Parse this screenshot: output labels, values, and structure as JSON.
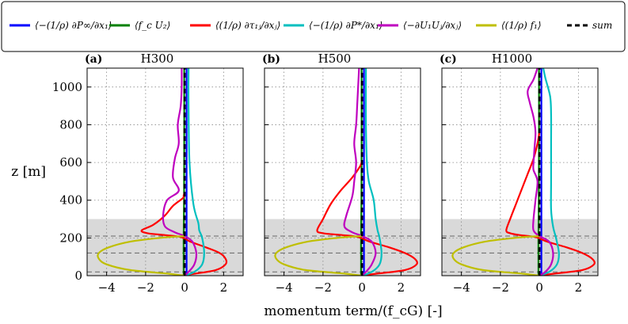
{
  "chart_data": {
    "type": "line",
    "xlabel": "momentum term/(f_cG) [-]",
    "ylabel": "z [m]",
    "xlim": [
      -5,
      3
    ],
    "ylim": [
      0,
      1100
    ],
    "xticks": [
      -4,
      -2,
      0,
      2
    ],
    "yticks": [
      0,
      200,
      400,
      600,
      800,
      1000
    ],
    "grid": true,
    "shaded_region": [
      0,
      300
    ],
    "dashed_levels": [
      20,
      120,
      210
    ],
    "legend": {
      "placement": "top",
      "entries": [
        {
          "label": "⟨−(1/ρ) ∂P∞/∂x₁⟩",
          "color": "#0000ff",
          "style": "solid"
        },
        {
          "label": "⟨f_c U₂⟩",
          "color": "#008000",
          "style": "solid"
        },
        {
          "label": "⟨(1/ρ) ∂τ₁ⱼ/∂xⱼ⟩",
          "color": "#ff0000",
          "style": "solid"
        },
        {
          "label": "⟨−(1/ρ) ∂P*/∂x₁⟩",
          "color": "#00bfbf",
          "style": "solid"
        },
        {
          "label": "⟨−∂U₁Uⱼ/∂xⱼ⟩",
          "color": "#bf00bf",
          "style": "solid"
        },
        {
          "label": "⟨(1/ρ) f₁⟩",
          "color": "#bfbf00",
          "style": "solid"
        },
        {
          "label": "sum",
          "color": "#000000",
          "style": "dashed"
        }
      ]
    },
    "panels": [
      {
        "letter": "(a)",
        "title": "H300",
        "series": [
          {
            "name": "pressure-gradient",
            "color": "#0000ff",
            "z": [
              0,
              20,
              100,
              200,
              400,
              700,
              1100
            ],
            "x": [
              0.1,
              0.1,
              0.1,
              0.1,
              0.1,
              0.1,
              0.1
            ]
          },
          {
            "name": "coriolis",
            "color": "#008000",
            "z": [
              0,
              20,
              100,
              200,
              400,
              700,
              1100
            ],
            "x": [
              -0.05,
              -0.05,
              -0.05,
              -0.05,
              -0.03,
              -0.02,
              -0.02
            ]
          },
          {
            "name": "stress-divergence",
            "color": "#ff0000",
            "z": [
              0,
              10,
              30,
              60,
              90,
              120,
              150,
              180,
              205,
              215,
              225,
              240,
              270,
              320,
              370,
              410,
              425,
              440
            ],
            "x": [
              -0.2,
              0.5,
              1.6,
              2.1,
              2.1,
              1.8,
              1.1,
              0.3,
              -0.2,
              -1.0,
              -1.9,
              -2.2,
              -1.6,
              -1.0,
              -0.6,
              -0.1,
              -0.05,
              0.0
            ]
          },
          {
            "name": "dispersive-pressure",
            "color": "#00bfbf",
            "z": [
              0,
              20,
              60,
              120,
              200,
              240,
              280,
              380,
              600,
              900,
              1100
            ],
            "x": [
              0.0,
              0.5,
              0.9,
              1.0,
              0.9,
              0.75,
              0.7,
              0.45,
              0.25,
              0.2,
              0.2
            ]
          },
          {
            "name": "advection",
            "color": "#bf00bf",
            "z": [
              0,
              20,
              60,
              120,
              180,
              210,
              230,
              260,
              320,
              400,
              450,
              520,
              620,
              700,
              800,
              900,
              1000,
              1100
            ],
            "x": [
              0.0,
              0.2,
              0.5,
              0.6,
              0.4,
              0.0,
              -0.5,
              -1.0,
              -1.1,
              -0.9,
              -0.3,
              -0.6,
              -0.5,
              -0.3,
              -0.35,
              -0.2,
              -0.15,
              -0.15
            ]
          },
          {
            "name": "drag-force",
            "color": "#bfbf00",
            "z": [
              0,
              10,
              30,
              60,
              90,
              120,
              150,
              180,
              200,
              210
            ],
            "x": [
              0.0,
              -0.8,
              -2.8,
              -4.0,
              -4.4,
              -4.4,
              -3.9,
              -2.8,
              -1.3,
              0.0
            ]
          },
          {
            "name": "sum",
            "color": "#000000",
            "dashed": true,
            "z": [
              0,
              20,
              100,
              200,
              400,
              700,
              1100
            ],
            "x": [
              0.0,
              0.0,
              0.0,
              0.0,
              0.0,
              0.0,
              0.0
            ]
          }
        ]
      },
      {
        "letter": "(b)",
        "title": "H500",
        "series": [
          {
            "name": "pressure-gradient",
            "color": "#0000ff",
            "z": [
              0,
              20,
              100,
              200,
              400,
              700,
              1100
            ],
            "x": [
              0.1,
              0.1,
              0.1,
              0.1,
              0.1,
              0.1,
              0.1
            ]
          },
          {
            "name": "coriolis",
            "color": "#008000",
            "z": [
              0,
              20,
              100,
              200,
              400,
              700,
              1100
            ],
            "x": [
              -0.05,
              -0.05,
              -0.05,
              -0.05,
              -0.03,
              -0.02,
              -0.02
            ]
          },
          {
            "name": "stress-divergence",
            "color": "#ff0000",
            "z": [
              0,
              10,
              30,
              60,
              90,
              120,
              150,
              180,
              205,
              215,
              225,
              240,
              300,
              380,
              450,
              520,
              580,
              610
            ],
            "x": [
              -0.2,
              0.7,
              2.2,
              2.8,
              2.7,
              2.2,
              1.4,
              0.4,
              -0.2,
              -1.0,
              -2.0,
              -2.3,
              -2.0,
              -1.6,
              -1.1,
              -0.5,
              -0.1,
              0.0
            ]
          },
          {
            "name": "dispersive-pressure",
            "color": "#00bfbf",
            "z": [
              0,
              20,
              60,
              120,
              200,
              240,
              300,
              400,
              500,
              600,
              800,
              1100
            ],
            "x": [
              0.0,
              0.5,
              0.9,
              1.0,
              0.9,
              0.8,
              0.7,
              0.6,
              0.35,
              0.25,
              0.2,
              0.2
            ]
          },
          {
            "name": "advection",
            "color": "#bf00bf",
            "z": [
              0,
              20,
              60,
              120,
              180,
              210,
              230,
              260,
              320,
              420,
              500,
              600,
              700,
              800,
              900,
              1000,
              1100
            ],
            "x": [
              0.0,
              0.2,
              0.5,
              0.7,
              0.5,
              0.0,
              -0.5,
              -0.9,
              -0.8,
              -0.5,
              -0.4,
              -0.3,
              -0.4,
              -0.3,
              -0.25,
              -0.2,
              -0.15
            ]
          },
          {
            "name": "drag-force",
            "color": "#bfbf00",
            "z": [
              0,
              10,
              30,
              60,
              90,
              120,
              150,
              180,
              200,
              210
            ],
            "x": [
              0.0,
              -0.8,
              -2.9,
              -4.0,
              -4.4,
              -4.4,
              -3.9,
              -2.8,
              -1.3,
              0.0
            ]
          },
          {
            "name": "sum",
            "color": "#000000",
            "dashed": true,
            "z": [
              0,
              20,
              100,
              200,
              400,
              700,
              1100
            ],
            "x": [
              0.0,
              0.0,
              0.0,
              0.0,
              0.0,
              0.0,
              0.0
            ]
          }
        ]
      },
      {
        "letter": "(c)",
        "title": "H1000",
        "series": [
          {
            "name": "pressure-gradient",
            "color": "#0000ff",
            "z": [
              0,
              20,
              100,
              200,
              400,
              700,
              1100
            ],
            "x": [
              0.1,
              0.1,
              0.1,
              0.1,
              0.1,
              0.1,
              0.1
            ]
          },
          {
            "name": "coriolis",
            "color": "#008000",
            "z": [
              0,
              20,
              100,
              200,
              400,
              700,
              1100
            ],
            "x": [
              -0.05,
              -0.05,
              -0.05,
              -0.05,
              -0.03,
              -0.02,
              -0.02
            ]
          },
          {
            "name": "stress-divergence",
            "color": "#ff0000",
            "z": [
              0,
              10,
              30,
              60,
              90,
              120,
              150,
              180,
              205,
              215,
              225,
              240,
              300,
              380,
              460,
              540,
              620,
              700,
              760
            ],
            "x": [
              -0.2,
              0.7,
              2.2,
              2.8,
              2.7,
              2.2,
              1.4,
              0.4,
              -0.2,
              -1.0,
              -1.5,
              -1.7,
              -1.5,
              -1.2,
              -0.9,
              -0.6,
              -0.3,
              -0.1,
              0.0
            ]
          },
          {
            "name": "dispersive-pressure",
            "color": "#00bfbf",
            "z": [
              0,
              20,
              60,
              120,
              200,
              260,
              350,
              500,
              700,
              850,
              950,
              1050,
              1100
            ],
            "x": [
              0.0,
              0.5,
              0.9,
              1.0,
              0.85,
              0.7,
              0.6,
              0.6,
              0.6,
              0.6,
              0.55,
              0.3,
              0.2
            ]
          },
          {
            "name": "advection",
            "color": "#bf00bf",
            "z": [
              0,
              20,
              60,
              120,
              180,
              210,
              240,
              300,
              400,
              500,
              560,
              600,
              680,
              760,
              840,
              920,
              980,
              1040,
              1100
            ],
            "x": [
              0.0,
              0.3,
              0.6,
              0.7,
              0.5,
              0.0,
              -0.3,
              -0.3,
              -0.2,
              -0.1,
              -0.3,
              -0.3,
              -0.25,
              -0.2,
              -0.3,
              -0.5,
              -0.6,
              -0.3,
              -0.1
            ]
          },
          {
            "name": "drag-force",
            "color": "#bfbf00",
            "z": [
              0,
              10,
              30,
              60,
              90,
              120,
              150,
              180,
              200,
              210
            ],
            "x": [
              0.0,
              -0.8,
              -2.9,
              -4.0,
              -4.4,
              -4.4,
              -3.9,
              -2.8,
              -1.3,
              0.0
            ]
          },
          {
            "name": "sum",
            "color": "#000000",
            "dashed": true,
            "z": [
              0,
              20,
              100,
              200,
              400,
              700,
              1100
            ],
            "x": [
              0.0,
              0.0,
              0.0,
              0.0,
              0.0,
              0.0,
              0.0
            ]
          }
        ]
      }
    ]
  }
}
